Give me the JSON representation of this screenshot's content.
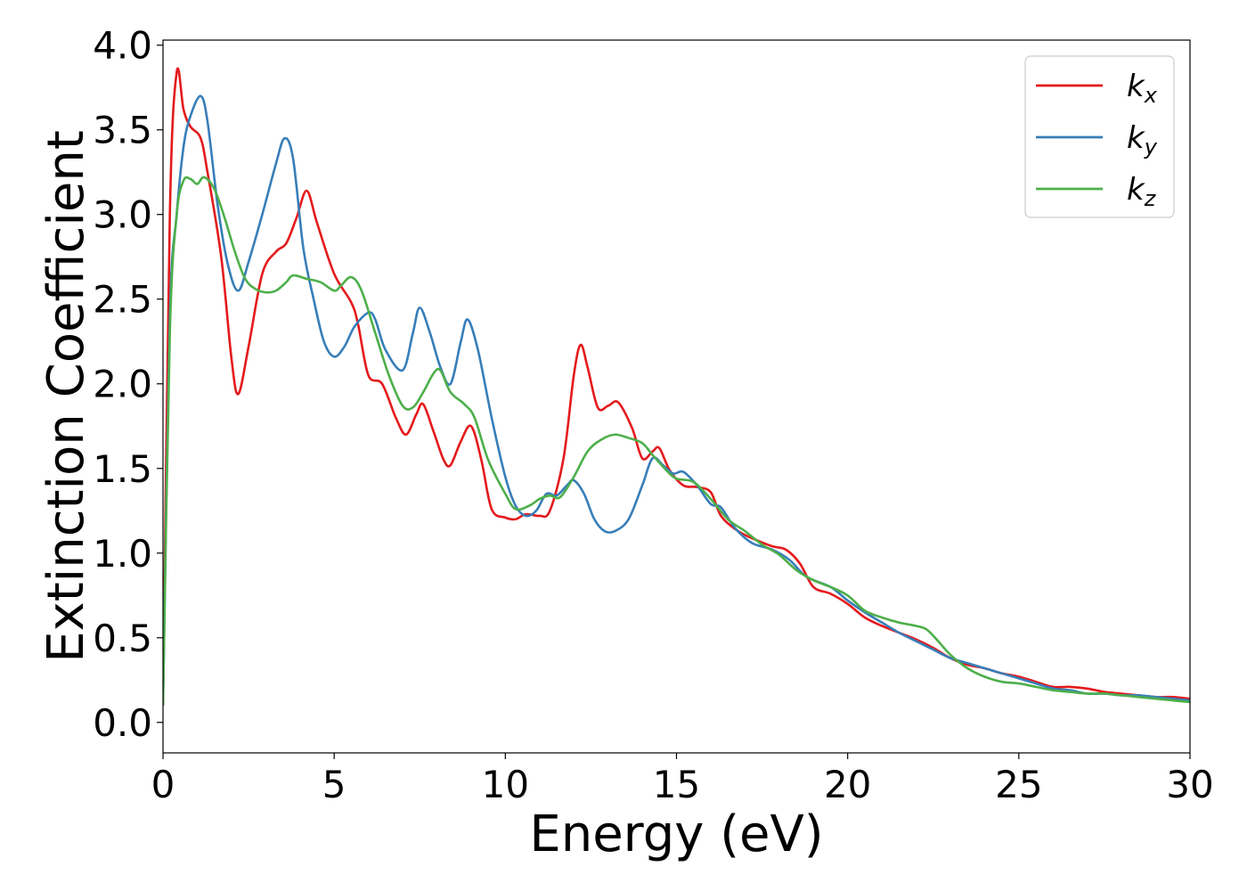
{
  "chart_data": {
    "type": "line",
    "xlabel": "Energy (eV)",
    "ylabel": "Extinction Coefficient",
    "xlim": [
      0,
      30
    ],
    "ylim": [
      -0.18,
      4.03
    ],
    "xticks": [
      0,
      5,
      10,
      15,
      20,
      25,
      30
    ],
    "xtick_labels": [
      "0",
      "5",
      "10",
      "15",
      "20",
      "25",
      "30"
    ],
    "yticks": [
      0.0,
      0.5,
      1.0,
      1.5,
      2.0,
      2.5,
      3.0,
      3.5,
      4.0
    ],
    "ytick_labels": [
      "0.0",
      "0.5",
      "1.0",
      "1.5",
      "2.0",
      "2.5",
      "3.0",
      "3.5",
      "4.0"
    ],
    "grid": false,
    "legend_position": "top-right",
    "series": [
      {
        "name": "k",
        "name_sub": "x",
        "color": "#e41a1c",
        "points": [
          [
            0,
            0.1
          ],
          [
            0.2,
            3.0
          ],
          [
            0.4,
            3.84
          ],
          [
            0.6,
            3.62
          ],
          [
            0.8,
            3.52
          ],
          [
            1.1,
            3.45
          ],
          [
            1.3,
            3.25
          ],
          [
            1.7,
            2.75
          ],
          [
            2.0,
            2.15
          ],
          [
            2.2,
            1.94
          ],
          [
            2.5,
            2.22
          ],
          [
            2.9,
            2.65
          ],
          [
            3.3,
            2.78
          ],
          [
            3.6,
            2.83
          ],
          [
            3.9,
            2.98
          ],
          [
            4.2,
            3.14
          ],
          [
            4.5,
            2.95
          ],
          [
            5.0,
            2.65
          ],
          [
            5.5,
            2.48
          ],
          [
            5.7,
            2.35
          ],
          [
            6.0,
            2.05
          ],
          [
            6.4,
            2.0
          ],
          [
            6.8,
            1.8
          ],
          [
            7.1,
            1.7
          ],
          [
            7.4,
            1.82
          ],
          [
            7.6,
            1.88
          ],
          [
            7.9,
            1.72
          ],
          [
            8.2,
            1.55
          ],
          [
            8.4,
            1.52
          ],
          [
            8.7,
            1.66
          ],
          [
            9.0,
            1.75
          ],
          [
            9.3,
            1.55
          ],
          [
            9.6,
            1.26
          ],
          [
            10.0,
            1.21
          ],
          [
            10.3,
            1.2
          ],
          [
            10.6,
            1.23
          ],
          [
            11.0,
            1.22
          ],
          [
            11.3,
            1.25
          ],
          [
            11.7,
            1.56
          ],
          [
            12.0,
            2.05
          ],
          [
            12.2,
            2.23
          ],
          [
            12.4,
            2.1
          ],
          [
            12.7,
            1.86
          ],
          [
            13.0,
            1.87
          ],
          [
            13.3,
            1.89
          ],
          [
            13.7,
            1.74
          ],
          [
            14.0,
            1.56
          ],
          [
            14.3,
            1.6
          ],
          [
            14.5,
            1.62
          ],
          [
            14.8,
            1.49
          ],
          [
            15.2,
            1.4
          ],
          [
            15.6,
            1.39
          ],
          [
            16.0,
            1.36
          ],
          [
            16.3,
            1.22
          ],
          [
            16.8,
            1.13
          ],
          [
            17.3,
            1.08
          ],
          [
            17.8,
            1.04
          ],
          [
            18.2,
            1.02
          ],
          [
            18.6,
            0.94
          ],
          [
            19.0,
            0.8
          ],
          [
            19.5,
            0.76
          ],
          [
            20.0,
            0.7
          ],
          [
            20.5,
            0.62
          ],
          [
            21.0,
            0.57
          ],
          [
            21.5,
            0.53
          ],
          [
            22.0,
            0.49
          ],
          [
            22.5,
            0.44
          ],
          [
            23.0,
            0.38
          ],
          [
            23.5,
            0.34
          ],
          [
            24.0,
            0.32
          ],
          [
            24.5,
            0.29
          ],
          [
            25.0,
            0.27
          ],
          [
            25.5,
            0.24
          ],
          [
            26.0,
            0.21
          ],
          [
            26.5,
            0.21
          ],
          [
            27.0,
            0.2
          ],
          [
            27.5,
            0.18
          ],
          [
            28.0,
            0.17
          ],
          [
            28.5,
            0.16
          ],
          [
            29.0,
            0.15
          ],
          [
            29.5,
            0.15
          ],
          [
            30.0,
            0.14
          ]
        ]
      },
      {
        "name": "k",
        "name_sub": "y",
        "color": "#377eb8",
        "points": [
          [
            0,
            0.1
          ],
          [
            0.2,
            2.4
          ],
          [
            0.4,
            3.0
          ],
          [
            0.6,
            3.4
          ],
          [
            0.8,
            3.58
          ],
          [
            1.1,
            3.7
          ],
          [
            1.3,
            3.55
          ],
          [
            1.6,
            3.05
          ],
          [
            1.9,
            2.7
          ],
          [
            2.2,
            2.55
          ],
          [
            2.5,
            2.72
          ],
          [
            2.9,
            3.0
          ],
          [
            3.3,
            3.3
          ],
          [
            3.55,
            3.45
          ],
          [
            3.8,
            3.33
          ],
          [
            4.1,
            2.8
          ],
          [
            4.4,
            2.5
          ],
          [
            4.7,
            2.25
          ],
          [
            5.0,
            2.16
          ],
          [
            5.3,
            2.22
          ],
          [
            5.6,
            2.34
          ],
          [
            6.0,
            2.42
          ],
          [
            6.2,
            2.38
          ],
          [
            6.5,
            2.2
          ],
          [
            7.0,
            2.08
          ],
          [
            7.3,
            2.3
          ],
          [
            7.5,
            2.45
          ],
          [
            7.8,
            2.3
          ],
          [
            8.1,
            2.1
          ],
          [
            8.4,
            2.0
          ],
          [
            8.7,
            2.25
          ],
          [
            8.9,
            2.38
          ],
          [
            9.2,
            2.2
          ],
          [
            9.6,
            1.8
          ],
          [
            10.0,
            1.45
          ],
          [
            10.3,
            1.28
          ],
          [
            10.6,
            1.22
          ],
          [
            10.9,
            1.25
          ],
          [
            11.2,
            1.35
          ],
          [
            11.5,
            1.34
          ],
          [
            11.8,
            1.4
          ],
          [
            12.0,
            1.43
          ],
          [
            12.3,
            1.35
          ],
          [
            12.6,
            1.2
          ],
          [
            12.9,
            1.13
          ],
          [
            13.2,
            1.13
          ],
          [
            13.6,
            1.2
          ],
          [
            14.0,
            1.4
          ],
          [
            14.3,
            1.56
          ],
          [
            14.6,
            1.52
          ],
          [
            14.9,
            1.47
          ],
          [
            15.2,
            1.48
          ],
          [
            15.6,
            1.4
          ],
          [
            16.0,
            1.29
          ],
          [
            16.3,
            1.27
          ],
          [
            16.7,
            1.15
          ],
          [
            17.2,
            1.06
          ],
          [
            17.8,
            1.02
          ],
          [
            18.3,
            0.96
          ],
          [
            18.8,
            0.86
          ],
          [
            19.5,
            0.8
          ],
          [
            20.0,
            0.72
          ],
          [
            20.5,
            0.65
          ],
          [
            21.0,
            0.59
          ],
          [
            21.5,
            0.53
          ],
          [
            22.0,
            0.48
          ],
          [
            22.5,
            0.43
          ],
          [
            23.0,
            0.38
          ],
          [
            23.5,
            0.35
          ],
          [
            24.0,
            0.32
          ],
          [
            24.5,
            0.29
          ],
          [
            25.0,
            0.26
          ],
          [
            25.5,
            0.23
          ],
          [
            26.0,
            0.2
          ],
          [
            26.5,
            0.19
          ],
          [
            27.0,
            0.17
          ],
          [
            27.5,
            0.17
          ],
          [
            28.0,
            0.16
          ],
          [
            28.5,
            0.16
          ],
          [
            29.0,
            0.15
          ],
          [
            29.5,
            0.14
          ],
          [
            30.0,
            0.13
          ]
        ]
      },
      {
        "name": "k",
        "name_sub": "z",
        "color": "#4daf4a",
        "points": [
          [
            0,
            0.1
          ],
          [
            0.2,
            2.3
          ],
          [
            0.4,
            3.0
          ],
          [
            0.6,
            3.2
          ],
          [
            0.8,
            3.21
          ],
          [
            1.0,
            3.18
          ],
          [
            1.2,
            3.22
          ],
          [
            1.5,
            3.15
          ],
          [
            1.8,
            2.98
          ],
          [
            2.1,
            2.78
          ],
          [
            2.4,
            2.62
          ],
          [
            2.7,
            2.56
          ],
          [
            3.0,
            2.54
          ],
          [
            3.3,
            2.55
          ],
          [
            3.6,
            2.6
          ],
          [
            3.8,
            2.64
          ],
          [
            4.2,
            2.62
          ],
          [
            4.6,
            2.6
          ],
          [
            5.0,
            2.55
          ],
          [
            5.2,
            2.58
          ],
          [
            5.5,
            2.63
          ],
          [
            5.8,
            2.55
          ],
          [
            6.2,
            2.3
          ],
          [
            6.6,
            2.05
          ],
          [
            7.0,
            1.87
          ],
          [
            7.3,
            1.86
          ],
          [
            7.6,
            1.95
          ],
          [
            7.9,
            2.06
          ],
          [
            8.1,
            2.08
          ],
          [
            8.4,
            1.95
          ],
          [
            8.8,
            1.88
          ],
          [
            9.1,
            1.8
          ],
          [
            9.5,
            1.55
          ],
          [
            10.0,
            1.35
          ],
          [
            10.3,
            1.26
          ],
          [
            10.7,
            1.28
          ],
          [
            11.0,
            1.32
          ],
          [
            11.3,
            1.34
          ],
          [
            11.6,
            1.33
          ],
          [
            12.0,
            1.45
          ],
          [
            12.4,
            1.6
          ],
          [
            12.8,
            1.67
          ],
          [
            13.2,
            1.7
          ],
          [
            13.6,
            1.68
          ],
          [
            14.0,
            1.65
          ],
          [
            14.3,
            1.58
          ],
          [
            14.7,
            1.49
          ],
          [
            15.0,
            1.44
          ],
          [
            15.5,
            1.42
          ],
          [
            16.0,
            1.32
          ],
          [
            16.5,
            1.2
          ],
          [
            17.0,
            1.13
          ],
          [
            17.5,
            1.05
          ],
          [
            18.0,
            0.99
          ],
          [
            18.5,
            0.9
          ],
          [
            19.0,
            0.84
          ],
          [
            19.5,
            0.8
          ],
          [
            20.0,
            0.75
          ],
          [
            20.5,
            0.66
          ],
          [
            21.0,
            0.62
          ],
          [
            21.5,
            0.59
          ],
          [
            22.0,
            0.57
          ],
          [
            22.3,
            0.55
          ],
          [
            22.6,
            0.49
          ],
          [
            23.0,
            0.4
          ],
          [
            23.5,
            0.32
          ],
          [
            24.0,
            0.27
          ],
          [
            24.5,
            0.24
          ],
          [
            25.0,
            0.23
          ],
          [
            25.5,
            0.21
          ],
          [
            26.0,
            0.19
          ],
          [
            26.5,
            0.18
          ],
          [
            27.0,
            0.17
          ],
          [
            27.5,
            0.17
          ],
          [
            28.0,
            0.16
          ],
          [
            28.5,
            0.15
          ],
          [
            29.0,
            0.14
          ],
          [
            29.5,
            0.13
          ],
          [
            30.0,
            0.12
          ]
        ]
      }
    ]
  }
}
